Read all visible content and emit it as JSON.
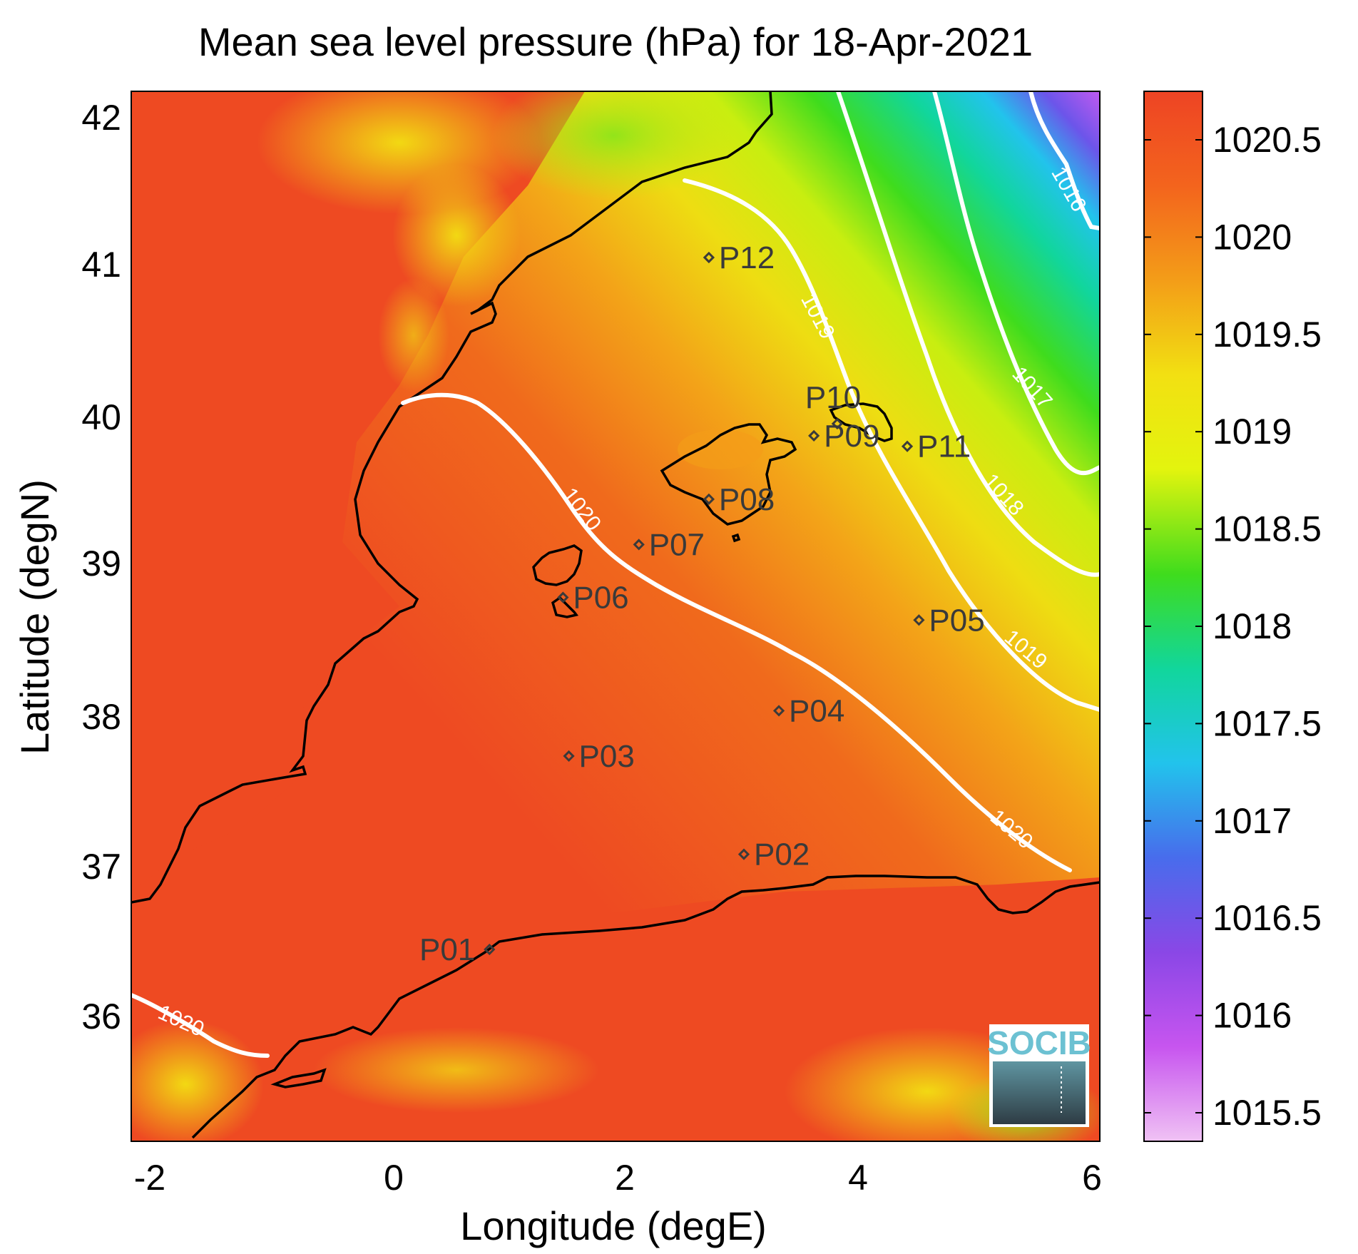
{
  "title": "Mean sea level pressure (hPa) for 18-Apr-2021",
  "xlabel": "Longitude (degE)",
  "ylabel": "Latitude (degN)",
  "x_ticks": [
    "-2",
    "0",
    "2",
    "4",
    "6"
  ],
  "y_ticks": [
    "42",
    "41",
    "40",
    "39",
    "38",
    "37",
    "36"
  ],
  "colorbar": {
    "ticks": [
      "1020.5",
      "1020",
      "1019.5",
      "1019",
      "1018.5",
      "1018",
      "1017.5",
      "1017",
      "1016.5",
      "1016",
      "1015.5"
    ],
    "colors": [
      "#ee4424",
      "#f3641d",
      "#f39d18",
      "#f2e012",
      "#e3f40e",
      "#3fdc1d",
      "#11d69c",
      "#22c3ec",
      "#486cec",
      "#8a47e6",
      "#c755ef",
      "#f0c2f4"
    ]
  },
  "contour_labels": [
    "1016",
    "1017",
    "1018",
    "1019",
    "1019",
    "1020",
    "1020",
    "1020"
  ],
  "stations": [
    {
      "id": "P01",
      "lon": 0.82,
      "lat": 36.52
    },
    {
      "id": "P02",
      "lon": 3.0,
      "lat": 37.15
    },
    {
      "id": "P03",
      "lon": 1.5,
      "lat": 37.8
    },
    {
      "id": "P04",
      "lon": 3.3,
      "lat": 38.1
    },
    {
      "id": "P05",
      "lon": 4.5,
      "lat": 38.7
    },
    {
      "id": "P06",
      "lon": 1.45,
      "lat": 38.85
    },
    {
      "id": "P07",
      "lon": 2.1,
      "lat": 39.2
    },
    {
      "id": "P08",
      "lon": 2.7,
      "lat": 39.5
    },
    {
      "id": "P09",
      "lon": 3.6,
      "lat": 39.92
    },
    {
      "id": "P10",
      "lon": 3.8,
      "lat": 40.0
    },
    {
      "id": "P11",
      "lon": 4.4,
      "lat": 39.85
    },
    {
      "id": "P12",
      "lon": 2.7,
      "lat": 41.1
    }
  ],
  "logo_text": "SOCIB",
  "map_bounds": {
    "lon": [
      -2.25,
      6.05
    ],
    "lat": [
      35.25,
      42.2
    ]
  }
}
